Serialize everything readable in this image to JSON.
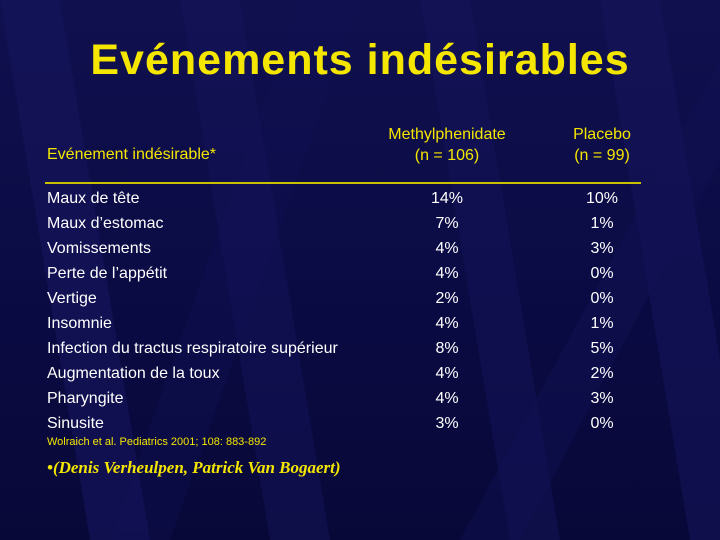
{
  "slide": {
    "title": "Evénements indésirables",
    "column_headers": {
      "event": "Evénement indésirable*",
      "methylphenidate_name": "Methylphenidate",
      "methylphenidate_n": "(n = 106)",
      "placebo_name": "Placebo",
      "placebo_n": "(n = 99)"
    },
    "rows": [
      {
        "event": "Maux de tête",
        "methylphenidate": "14%",
        "placebo": "10%"
      },
      {
        "event": "Maux d’estomac",
        "methylphenidate": "7%",
        "placebo": "1%"
      },
      {
        "event": "Vomissements",
        "methylphenidate": "4%",
        "placebo": "3%"
      },
      {
        "event": "Perte de l’appétit",
        "methylphenidate": "4%",
        "placebo": "0%"
      },
      {
        "event": "Vertige",
        "methylphenidate": "2%",
        "placebo": "0%"
      },
      {
        "event": "Insomnie",
        "methylphenidate": "4%",
        "placebo": "1%"
      },
      {
        "event": "Infection du tractus respiratoire supérieur",
        "methylphenidate": "8%",
        "placebo": "5%"
      },
      {
        "event": "Augmentation de la toux",
        "methylphenidate": "4%",
        "placebo": "2%"
      },
      {
        "event": "Pharyngite",
        "methylphenidate": "4%",
        "placebo": "3%"
      },
      {
        "event": "Sinusite",
        "methylphenidate": "3%",
        "placebo": "0%"
      }
    ],
    "reference": "Wolraich et al. Pediatrics 2001; 108: 883-892",
    "credit": "•(Denis Verheulpen, Patrick Van Bogaert)"
  },
  "colors": {
    "background": "#0b0b45",
    "accent_yellow": "#f5e600",
    "body_text": "#ffffff"
  }
}
